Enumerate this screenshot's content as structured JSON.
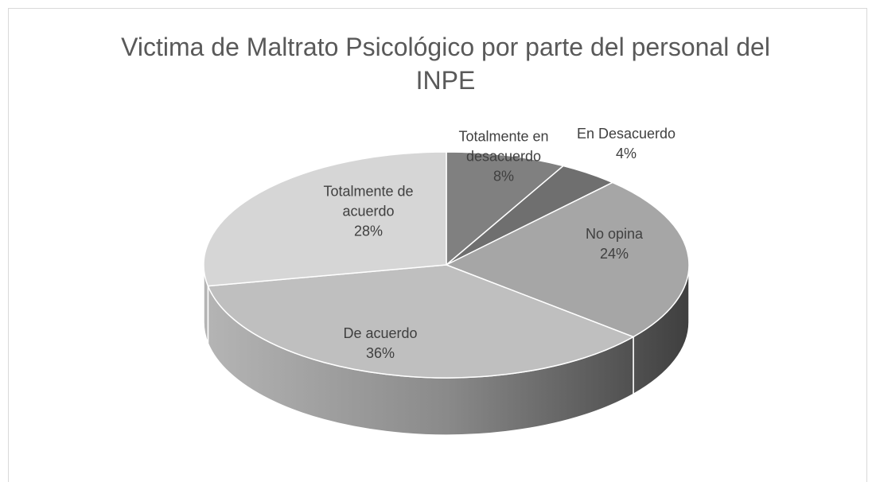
{
  "chart_data": {
    "type": "pie",
    "title": "Victima de Maltrato Psicológico por parte del personal del INPE",
    "categories": [
      "Totalmente en desacuerdo",
      "En Desacuerdo",
      "No opina",
      "De acuerdo",
      "Totalmente de acuerdo"
    ],
    "values": [
      8,
      4,
      24,
      36,
      28
    ],
    "value_labels": [
      "8%",
      "4%",
      "24%",
      "36%",
      "28%"
    ],
    "colors": [
      "#808080",
      "#6f6f6f",
      "#a6a6a6",
      "#bfbfbf",
      "#d6d6d6"
    ]
  }
}
